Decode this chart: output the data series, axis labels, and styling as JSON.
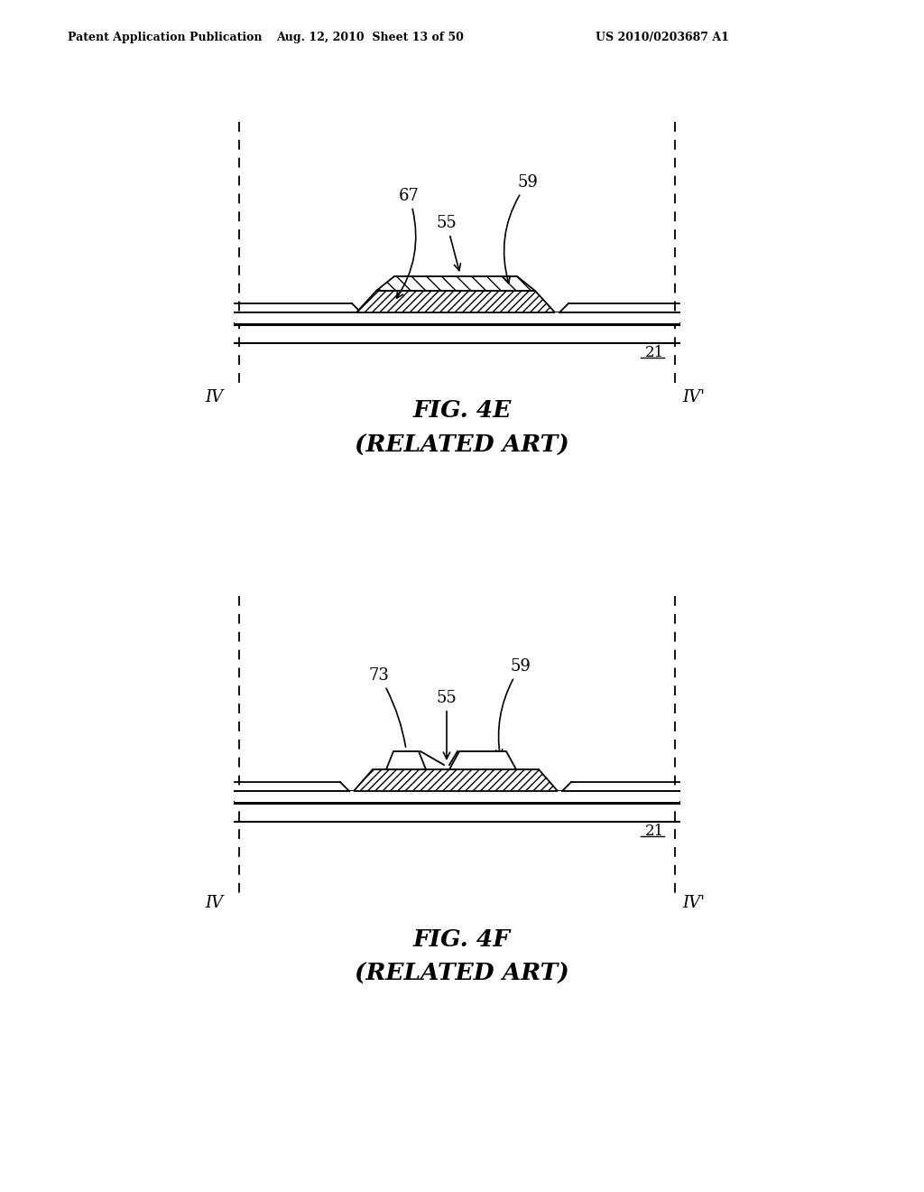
{
  "bg_color": "#ffffff",
  "header_left": "Patent Application Publication",
  "header_mid": "Aug. 12, 2010  Sheet 13 of 50",
  "header_right": "US 2010/0203687 A1",
  "fig4e_title": "FIG. 4E",
  "fig4e_subtitle": "(RELATED ART)",
  "fig4f_title": "FIG. 4F",
  "fig4f_subtitle": "(RELATED ART)"
}
